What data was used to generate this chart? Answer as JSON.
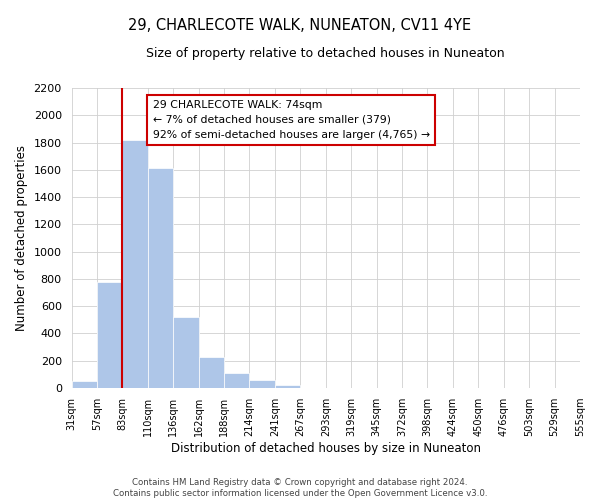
{
  "title": "29, CHARLECOTE WALK, NUNEATON, CV11 4YE",
  "subtitle": "Size of property relative to detached houses in Nuneaton",
  "xlabel": "Distribution of detached houses by size in Nuneaton",
  "ylabel": "Number of detached properties",
  "bar_values": [
    50,
    780,
    1820,
    1610,
    520,
    230,
    110,
    55,
    25,
    0,
    0,
    0,
    0,
    0,
    0,
    0,
    0,
    0,
    0,
    0
  ],
  "categories": [
    "31sqm",
    "57sqm",
    "83sqm",
    "110sqm",
    "136sqm",
    "162sqm",
    "188sqm",
    "214sqm",
    "241sqm",
    "267sqm",
    "293sqm",
    "319sqm",
    "345sqm",
    "372sqm",
    "398sqm",
    "424sqm",
    "450sqm",
    "476sqm",
    "503sqm",
    "529sqm",
    "555sqm"
  ],
  "bar_color": "#aec6e8",
  "bar_edge_color": "#ffffff",
  "annotation_line_color": "#cc0000",
  "annotation_box_text": "29 CHARLECOTE WALK: 74sqm\n← 7% of detached houses are smaller (379)\n92% of semi-detached houses are larger (4,765) →",
  "ylim": [
    0,
    2200
  ],
  "yticks": [
    0,
    200,
    400,
    600,
    800,
    1000,
    1200,
    1400,
    1600,
    1800,
    2000,
    2200
  ],
  "footer_line1": "Contains HM Land Registry data © Crown copyright and database right 2024.",
  "footer_line2": "Contains public sector information licensed under the Open Government Licence v3.0.",
  "background_color": "#ffffff",
  "grid_color": "#d0d0d0",
  "red_line_index": 2
}
